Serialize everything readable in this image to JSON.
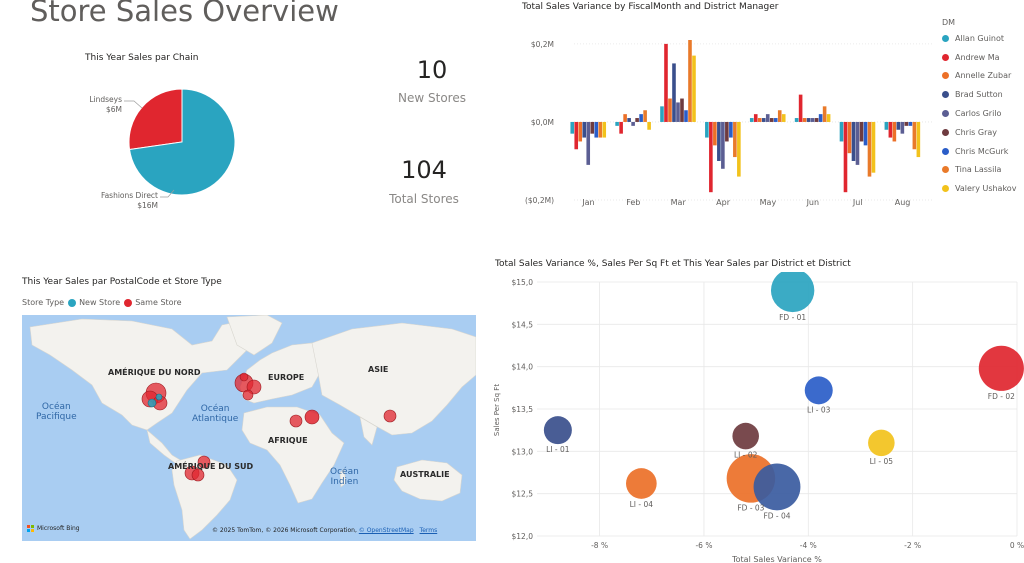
{
  "page": {
    "title": "Store Sales Overview"
  },
  "pie": {
    "title": "This Year Sales par Chain",
    "slices": [
      {
        "name": "Lindseys",
        "value_label": "$6M",
        "value": 6,
        "color": "#e0262f"
      },
      {
        "name": "Fashions Direct",
        "value_label": "$16M",
        "value": 16,
        "color": "#2aa4c0"
      }
    ]
  },
  "cards": {
    "new_stores": {
      "value": "10",
      "label": "New Stores"
    },
    "total_stores": {
      "value": "104",
      "label": "Total Stores"
    }
  },
  "chart_data": [
    {
      "type": "bar",
      "title": "Total Sales Variance by FiscalMonth and District Manager",
      "categories": [
        "Jan",
        "Feb",
        "Mar",
        "Apr",
        "May",
        "Jun",
        "Jul",
        "Aug"
      ],
      "yticks": [
        "$0,2M",
        "$0,0M",
        "($0,2M)"
      ],
      "ylim": [
        -0.2,
        0.21
      ],
      "legend_title": "DM",
      "legend_position": "right",
      "series": [
        {
          "name": "Allan Guinot",
          "color": "#2aa4c0",
          "values": [
            -0.03,
            -0.01,
            0.04,
            -0.04,
            0.01,
            0.01,
            -0.05,
            -0.02
          ]
        },
        {
          "name": "Andrew Ma",
          "color": "#e0262f",
          "values": [
            -0.07,
            -0.03,
            0.2,
            -0.18,
            0.02,
            0.07,
            -0.18,
            -0.04
          ]
        },
        {
          "name": "Annelle Zubar",
          "color": "#ec7028",
          "values": [
            -0.05,
            0.02,
            0.06,
            -0.06,
            0.01,
            0.01,
            -0.08,
            -0.05
          ]
        },
        {
          "name": "Brad Sutton",
          "color": "#3a4f8c",
          "values": [
            -0.04,
            0.01,
            0.15,
            -0.1,
            0.01,
            0.01,
            -0.1,
            -0.02
          ]
        },
        {
          "name": "Carlos Grilo",
          "color": "#5b5e93",
          "values": [
            -0.11,
            -0.01,
            0.05,
            -0.12,
            0.02,
            0.01,
            -0.11,
            -0.03
          ]
        },
        {
          "name": "Chris Gray",
          "color": "#6e3b3f",
          "values": [
            -0.03,
            0.01,
            0.06,
            -0.05,
            0.01,
            0.01,
            -0.05,
            -0.01
          ]
        },
        {
          "name": "Chris McGurk",
          "color": "#2a5dc8",
          "values": [
            -0.04,
            0.02,
            0.03,
            -0.04,
            0.01,
            0.02,
            -0.06,
            -0.01
          ]
        },
        {
          "name": "Tina Lassila",
          "color": "#e97a2a",
          "values": [
            -0.04,
            0.03,
            0.21,
            -0.09,
            0.03,
            0.04,
            -0.14,
            -0.07
          ]
        },
        {
          "name": "Valery Ushakov",
          "color": "#f2c21c",
          "values": [
            -0.04,
            -0.02,
            0.17,
            -0.14,
            0.02,
            0.02,
            -0.13,
            -0.09
          ]
        }
      ]
    },
    {
      "type": "scatter",
      "title": "Total Sales Variance %, Sales Per Sq Ft et This Year Sales par District et District",
      "xlabel": "Total Sales Variance %",
      "ylabel": "Sales Per Sq Ft",
      "xticks": [
        "-8 %",
        "-6 %",
        "-4 %",
        "-2 %",
        "0 %"
      ],
      "yticks": [
        "$15,0",
        "$14,5",
        "$14,0",
        "$13,5",
        "$13,0",
        "$12,5",
        "$12,0"
      ],
      "xlim": [
        -9.2,
        0
      ],
      "ylim": [
        12.0,
        15.0
      ],
      "points": [
        {
          "label": "FD - 01",
          "x": -4.3,
          "y": 14.9,
          "size": 2.4,
          "color": "#2aa4c0"
        },
        {
          "label": "FD - 02",
          "x": -0.3,
          "y": 13.98,
          "size": 2.6,
          "color": "#e0262f"
        },
        {
          "label": "LI - 03",
          "x": -3.8,
          "y": 13.72,
          "size": 1.0,
          "color": "#2a5dc8"
        },
        {
          "label": "LI - 01",
          "x": -8.8,
          "y": 13.25,
          "size": 1.0,
          "color": "#3a4f8c"
        },
        {
          "label": "LI - 02",
          "x": -5.2,
          "y": 13.18,
          "size": 0.9,
          "color": "#6e3b3f"
        },
        {
          "label": "LI - 05",
          "x": -2.6,
          "y": 13.1,
          "size": 0.9,
          "color": "#f2c21c"
        },
        {
          "label": "FD - 03",
          "x": -5.1,
          "y": 12.68,
          "size": 3.0,
          "color": "#ec7028"
        },
        {
          "label": "FD - 04",
          "x": -4.6,
          "y": 12.58,
          "size": 2.8,
          "color": "#3a5ba0"
        },
        {
          "label": "LI - 04",
          "x": -7.2,
          "y": 12.62,
          "size": 1.2,
          "color": "#ec7028"
        }
      ]
    }
  ],
  "map": {
    "title": "This Year Sales par PostalCode et Store Type",
    "legend_title": "Store Type",
    "legend": [
      {
        "name": "New Store",
        "color": "#2aa4c0"
      },
      {
        "name": "Same Store",
        "color": "#e0262f"
      }
    ],
    "region_labels": [
      "AMÉRIQUE DU NORD",
      "EUROPE",
      "ASIE",
      "AFRIQUE",
      "AMÉRIQUE DU SUD",
      "AUSTRALIE"
    ],
    "ocean_labels": [
      "Océan\nPacifique",
      "Océan\nAtlantique",
      "Océan\nIndien"
    ],
    "copyright": "© 2025 TomTom, © 2026 Microsoft Corporation,",
    "osm_link": "© OpenStreetMap",
    "terms_link": "Terms",
    "brand": "Microsoft Bing"
  }
}
